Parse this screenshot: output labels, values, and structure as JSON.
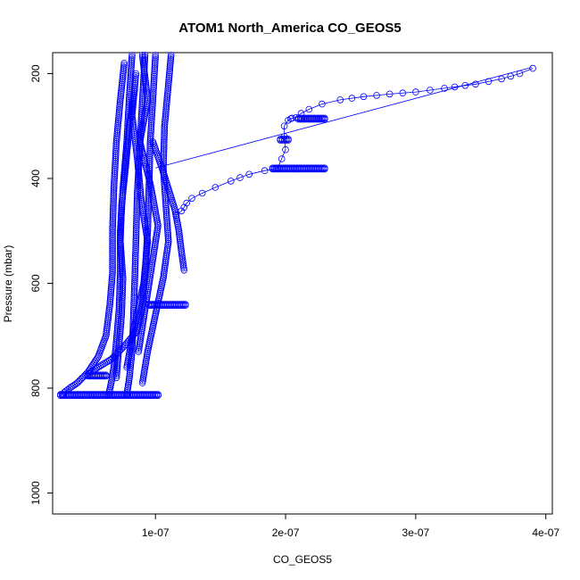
{
  "chart_data": {
    "type": "scatter",
    "title": "ATOM1 North_America CO_GEOS5",
    "xlabel": "CO_GEOS5",
    "ylabel": "Pressure (mbar)",
    "xlim": [
      2.1e-08,
      4.05e-07
    ],
    "ylim": [
      1040,
      160
    ],
    "y_inverted": true,
    "grid": false,
    "legend": "none",
    "x_ticks": [
      {
        "value": 1e-07,
        "label": "1e-07"
      },
      {
        "value": 2e-07,
        "label": "2e-07"
      },
      {
        "value": 3e-07,
        "label": "3e-07"
      },
      {
        "value": 4e-07,
        "label": "4e-07"
      }
    ],
    "y_ticks": [
      {
        "value": 200,
        "label": "200"
      },
      {
        "value": 400,
        "label": "400"
      },
      {
        "value": 600,
        "label": "600"
      },
      {
        "value": 800,
        "label": "800"
      },
      {
        "value": 1000,
        "label": "1000"
      }
    ],
    "colors": {
      "series": "#0000ff",
      "axis": "#000000",
      "background": "#ffffff"
    },
    "series": [
      {
        "x": [
          7.6e-08,
          7.3e-08,
          7e-08,
          6.8e-08,
          6.7e-08,
          6.7e-08,
          6.5e-08,
          6.2e-08,
          5.6e-08,
          4.8e-08,
          4e-08,
          3.4e-08,
          3e-08,
          2.9e-08
        ],
        "y": [
          180,
          250,
          330,
          420,
          500,
          580,
          640,
          700,
          740,
          770,
          790,
          800,
          808,
          812
        ]
      },
      {
        "x": [
          8.2e-08,
          8e-08,
          7.8e-08,
          7.5e-08,
          7.3e-08,
          7.3e-08,
          7.2e-08,
          7e-08,
          6.8e-08,
          6.6e-08,
          6.4e-08
        ],
        "y": [
          165,
          240,
          330,
          420,
          500,
          580,
          650,
          710,
          760,
          790,
          812
        ]
      },
      {
        "x": [
          9.2e-08,
          9e-08,
          8.8e-08,
          8.6e-08,
          8.5e-08,
          8.4e-08,
          8.3e-08,
          8.2e-08,
          8e-08,
          7.8e-08
        ],
        "y": [
          165,
          250,
          340,
          430,
          520,
          600,
          670,
          730,
          780,
          812
        ]
      },
      {
        "x": [
          1e-07,
          9.8e-08,
          9.6e-08,
          9.5e-08,
          9.4e-08,
          9.2e-08,
          9e-08,
          8.6e-08,
          7.6e-08,
          6.6e-08,
          5.6e-08,
          4.9e-08
        ],
        "y": [
          165,
          250,
          330,
          420,
          500,
          580,
          640,
          690,
          720,
          745,
          760,
          772
        ]
      },
      {
        "x": [
          1.12e-07,
          1.1e-07,
          1.07e-07,
          1.06e-07,
          1.08e-07,
          1.1e-07,
          1.06e-07,
          1e-07,
          9.4e-08,
          9e-08
        ],
        "y": [
          165,
          220,
          300,
          380,
          450,
          520,
          590,
          660,
          730,
          790
        ]
      },
      {
        "x": [
          8.5e-08,
          8.2e-08,
          8.6e-08,
          8.9e-08,
          9.4e-08,
          9.1e-08,
          8.4e-08,
          7.8e-08
        ],
        "y": [
          200,
          280,
          360,
          440,
          520,
          600,
          680,
          760
        ]
      },
      {
        "x": [
          9e-08,
          9.4e-08,
          8.8e-08,
          9.6e-08,
          1.02e-07,
          9.7e-08,
          9.2e-08,
          8.7e-08
        ],
        "y": [
          165,
          250,
          330,
          410,
          490,
          570,
          650,
          730
        ]
      },
      {
        "x": [
          9.8e-08,
          1.05e-07,
          1.1e-07,
          1.15e-07,
          1.18e-07,
          1.2e-07,
          1.22e-07
        ],
        "y": [
          330,
          380,
          420,
          460,
          500,
          540,
          575
        ]
      },
      {
        "x": [
          8.4e-08,
          8e-08,
          7.7e-08,
          7.4e-08,
          7.3e-08,
          7.5e-08,
          7.4e-08,
          7.2e-08,
          7e-08
        ],
        "y": [
          230,
          300,
          380,
          450,
          520,
          590,
          660,
          720,
          780
        ]
      },
      {
        "x": [
          1.16e-07,
          1.2e-07,
          1.22e-07,
          1.24e-07,
          1.28e-07,
          1.36e-07,
          1.46e-07,
          1.58e-07,
          1.72e-07,
          1.84e-07,
          1.94e-07,
          2e-07,
          1.99e-07,
          1.99e-07,
          2.02e-07,
          2.04e-07,
          2.05e-07,
          2.08e-07,
          2.12e-07,
          2.18e-07,
          2.28e-07,
          2.42e-07,
          2.6e-07,
          2.8e-07,
          3e-07,
          3.22e-07,
          3.46e-07,
          3.66e-07,
          3.8e-07,
          3.9e-07
        ],
        "y": [
          470,
          462,
          455,
          447,
          438,
          428,
          417,
          405,
          392,
          385,
          380,
          345,
          320,
          300,
          289,
          286,
          285,
          284,
          276,
          268,
          258,
          250,
          244,
          239,
          235,
          228,
          220,
          210,
          200,
          190
        ]
      }
    ],
    "horizontal_clusters": [
      {
        "y": 812,
        "x_from": 2.7e-08,
        "x_to": 1.02e-07
      },
      {
        "y": 640,
        "x_from": 9.5e-08,
        "x_to": 1.23e-07
      },
      {
        "y": 775,
        "x_from": 4.8e-08,
        "x_to": 6.2e-08
      },
      {
        "y": 380,
        "x_from": 1.9e-07,
        "x_to": 2.3e-07
      },
      {
        "y": 285,
        "x_from": 2.1e-07,
        "x_to": 2.3e-07
      },
      {
        "y": 325,
        "x_from": 1.96e-07,
        "x_to": 2.02e-07
      }
    ],
    "connecting_line": {
      "x": [
        1e-07,
        3.89e-07
      ],
      "y": [
        380,
        188
      ]
    }
  }
}
